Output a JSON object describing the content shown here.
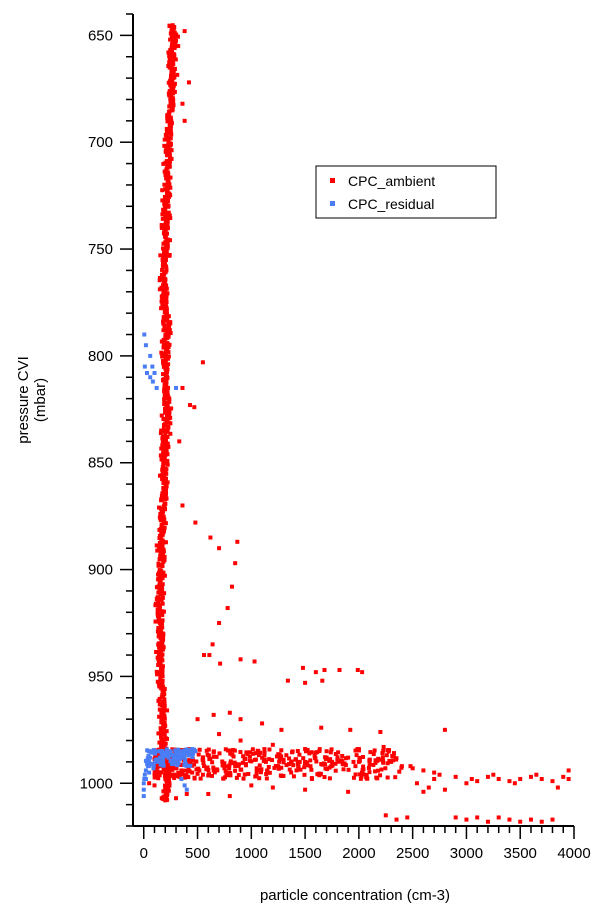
{
  "chart_data": {
    "type": "scatter",
    "xlabel": "particle concentration (cm-3)",
    "ylabel_lines": [
      "pressure CVI",
      "(mbar)"
    ],
    "xlim": [
      -100,
      4000
    ],
    "ylim": [
      640,
      1020
    ],
    "y_inverted": true,
    "x_ticks": [
      0,
      500,
      1000,
      1500,
      2000,
      2500,
      3000,
      3500,
      4000
    ],
    "y_ticks": [
      650,
      700,
      750,
      800,
      850,
      900,
      950,
      1000
    ],
    "y_minor_step": 10,
    "x_minor_step": 100,
    "grid": false,
    "legend_position": "upper-right",
    "series": [
      {
        "name": "CPC_ambient",
        "color": "#ff0000",
        "profile": [
          [
            645,
            265
          ],
          [
            650,
            285
          ],
          [
            660,
            260
          ],
          [
            670,
            270
          ],
          [
            680,
            255
          ],
          [
            690,
            240
          ],
          [
            700,
            230
          ],
          [
            710,
            225
          ],
          [
            720,
            215
          ],
          [
            730,
            210
          ],
          [
            740,
            205
          ],
          [
            750,
            200
          ],
          [
            760,
            195
          ],
          [
            770,
            190
          ],
          [
            780,
            200
          ],
          [
            790,
            210
          ],
          [
            800,
            205
          ],
          [
            810,
            200
          ],
          [
            820,
            215
          ],
          [
            830,
            210
          ],
          [
            840,
            200
          ],
          [
            850,
            195
          ],
          [
            860,
            190
          ],
          [
            870,
            180
          ],
          [
            880,
            170
          ],
          [
            890,
            165
          ],
          [
            900,
            160
          ],
          [
            910,
            155
          ],
          [
            920,
            150
          ],
          [
            930,
            155
          ],
          [
            940,
            160
          ],
          [
            950,
            165
          ],
          [
            960,
            170
          ],
          [
            970,
            175
          ],
          [
            980,
            180
          ],
          [
            990,
            200
          ],
          [
            1000,
            220
          ],
          [
            1008,
            180
          ]
        ],
        "points": [
          [
            245,
            652
          ],
          [
            320,
            655
          ],
          [
            380,
            648
          ],
          [
            420,
            672
          ],
          [
            380,
            690
          ],
          [
            360,
            682
          ],
          [
            550,
            803
          ],
          [
            360,
            815
          ],
          [
            430,
            823
          ],
          [
            470,
            824
          ],
          [
            330,
            840
          ],
          [
            360,
            870
          ],
          [
            480,
            878
          ],
          [
            620,
            885
          ],
          [
            700,
            890
          ],
          [
            870,
            887
          ],
          [
            850,
            897
          ],
          [
            820,
            908
          ],
          [
            780,
            918
          ],
          [
            700,
            925
          ],
          [
            640,
            935
          ],
          [
            560,
            940
          ],
          [
            610,
            940
          ],
          [
            710,
            944
          ],
          [
            900,
            942
          ],
          [
            1030,
            943
          ],
          [
            1480,
            946
          ],
          [
            1600,
            948
          ],
          [
            1680,
            947
          ],
          [
            1820,
            947
          ],
          [
            1340,
            952
          ],
          [
            1500,
            953
          ],
          [
            1660,
            952
          ],
          [
            1990,
            947
          ],
          [
            2030,
            948
          ],
          [
            500,
            970
          ],
          [
            650,
            968
          ],
          [
            800,
            967
          ],
          [
            900,
            970
          ],
          [
            1100,
            972
          ],
          [
            1280,
            975
          ],
          [
            1650,
            974
          ],
          [
            1920,
            975
          ],
          [
            2200,
            976
          ],
          [
            2800,
            975
          ],
          [
            700,
            977
          ],
          [
            900,
            980
          ],
          [
            1200,
            982
          ],
          [
            1500,
            984
          ],
          [
            1700,
            985
          ],
          [
            2000,
            984
          ],
          [
            2230,
            983
          ],
          [
            1100,
            988
          ],
          [
            1300,
            989
          ],
          [
            1500,
            990
          ],
          [
            1700,
            988
          ],
          [
            1800,
            989
          ],
          [
            1900,
            988
          ],
          [
            2000,
            990
          ],
          [
            2100,
            991
          ],
          [
            2200,
            989
          ],
          [
            2300,
            990
          ],
          [
            2400,
            992
          ],
          [
            2500,
            993
          ],
          [
            2600,
            994
          ],
          [
            2700,
            995
          ],
          [
            2750,
            996
          ],
          [
            2900,
            997
          ],
          [
            3050,
            998
          ],
          [
            3100,
            999
          ],
          [
            3200,
            997
          ],
          [
            3300,
            998
          ],
          [
            3400,
            999
          ],
          [
            3500,
            998
          ],
          [
            3600,
            997
          ],
          [
            3700,
            998
          ],
          [
            3800,
            999
          ],
          [
            3900,
            997
          ],
          [
            3950,
            998
          ],
          [
            2480,
            992
          ],
          [
            2540,
            1000
          ],
          [
            2600,
            1004
          ],
          [
            2650,
            1002
          ],
          [
            2700,
            998
          ],
          [
            2800,
            1003
          ],
          [
            3000,
            1000
          ],
          [
            3250,
            996
          ],
          [
            3450,
            1000
          ],
          [
            3650,
            996
          ],
          [
            3850,
            1002
          ],
          [
            3950,
            994
          ],
          [
            3000,
            1017
          ],
          [
            3100,
            1016
          ],
          [
            3200,
            1018
          ],
          [
            3300,
            1016
          ],
          [
            3400,
            1017
          ],
          [
            3500,
            1018
          ],
          [
            3600,
            1017
          ],
          [
            3700,
            1018
          ],
          [
            3800,
            1017
          ],
          [
            2900,
            1016
          ],
          [
            2450,
            1016
          ],
          [
            2350,
            1017
          ],
          [
            2250,
            1015
          ],
          [
            1900,
            1004
          ],
          [
            1500,
            1003
          ],
          [
            1200,
            1002
          ],
          [
            1000,
            1001
          ],
          [
            800,
            1006
          ],
          [
            600,
            1005
          ],
          [
            400,
            1005
          ],
          [
            300,
            1007
          ],
          [
            200,
            1008
          ],
          [
            100,
            1001
          ],
          [
            50,
            1000
          ],
          [
            150,
            995
          ],
          [
            250,
            993
          ],
          [
            350,
            994
          ],
          [
            450,
            995
          ],
          [
            550,
            996
          ],
          [
            650,
            994
          ],
          [
            750,
            993
          ],
          [
            850,
            992
          ],
          [
            950,
            991
          ],
          [
            1050,
            993
          ],
          [
            1150,
            994
          ],
          [
            1250,
            992
          ],
          [
            1350,
            991
          ],
          [
            1450,
            990
          ],
          [
            1550,
            992
          ],
          [
            1650,
            991
          ],
          [
            1750,
            990
          ],
          [
            1850,
            991
          ],
          [
            1950,
            990
          ]
        ]
      },
      {
        "name": "CPC_residual",
        "color": "#4a7df5",
        "points": [
          [
            5,
            790
          ],
          [
            20,
            795
          ],
          [
            60,
            800
          ],
          [
            80,
            805
          ],
          [
            60,
            810
          ],
          [
            85,
            812
          ],
          [
            120,
            815
          ],
          [
            300,
            815
          ],
          [
            10,
            805
          ],
          [
            30,
            808
          ],
          [
            100,
            808
          ],
          [
            30,
            990
          ],
          [
            60,
            988
          ],
          [
            100,
            986
          ],
          [
            150,
            985
          ],
          [
            200,
            986
          ],
          [
            250,
            985
          ],
          [
            300,
            986
          ],
          [
            350,
            985
          ],
          [
            400,
            986
          ],
          [
            450,
            984
          ],
          [
            480,
            985
          ],
          [
            420,
            987
          ],
          [
            380,
            988
          ],
          [
            330,
            987
          ],
          [
            280,
            988
          ],
          [
            230,
            988
          ],
          [
            180,
            989
          ],
          [
            120,
            990
          ],
          [
            80,
            991
          ],
          [
            40,
            992
          ],
          [
            20,
            994
          ],
          [
            10,
            996
          ],
          [
            5,
            998
          ],
          [
            0,
            1000
          ],
          [
            0,
            1003
          ],
          [
            0,
            1006
          ],
          [
            20,
            998
          ],
          [
            50,
            995
          ],
          [
            90,
            993
          ],
          [
            350,
            998
          ],
          [
            380,
            1001
          ],
          [
            400,
            1003
          ],
          [
            150,
            988
          ],
          [
            200,
            987
          ],
          [
            260,
            987
          ],
          [
            320,
            988
          ],
          [
            410,
            985
          ],
          [
            450,
            986
          ]
        ]
      }
    ]
  }
}
